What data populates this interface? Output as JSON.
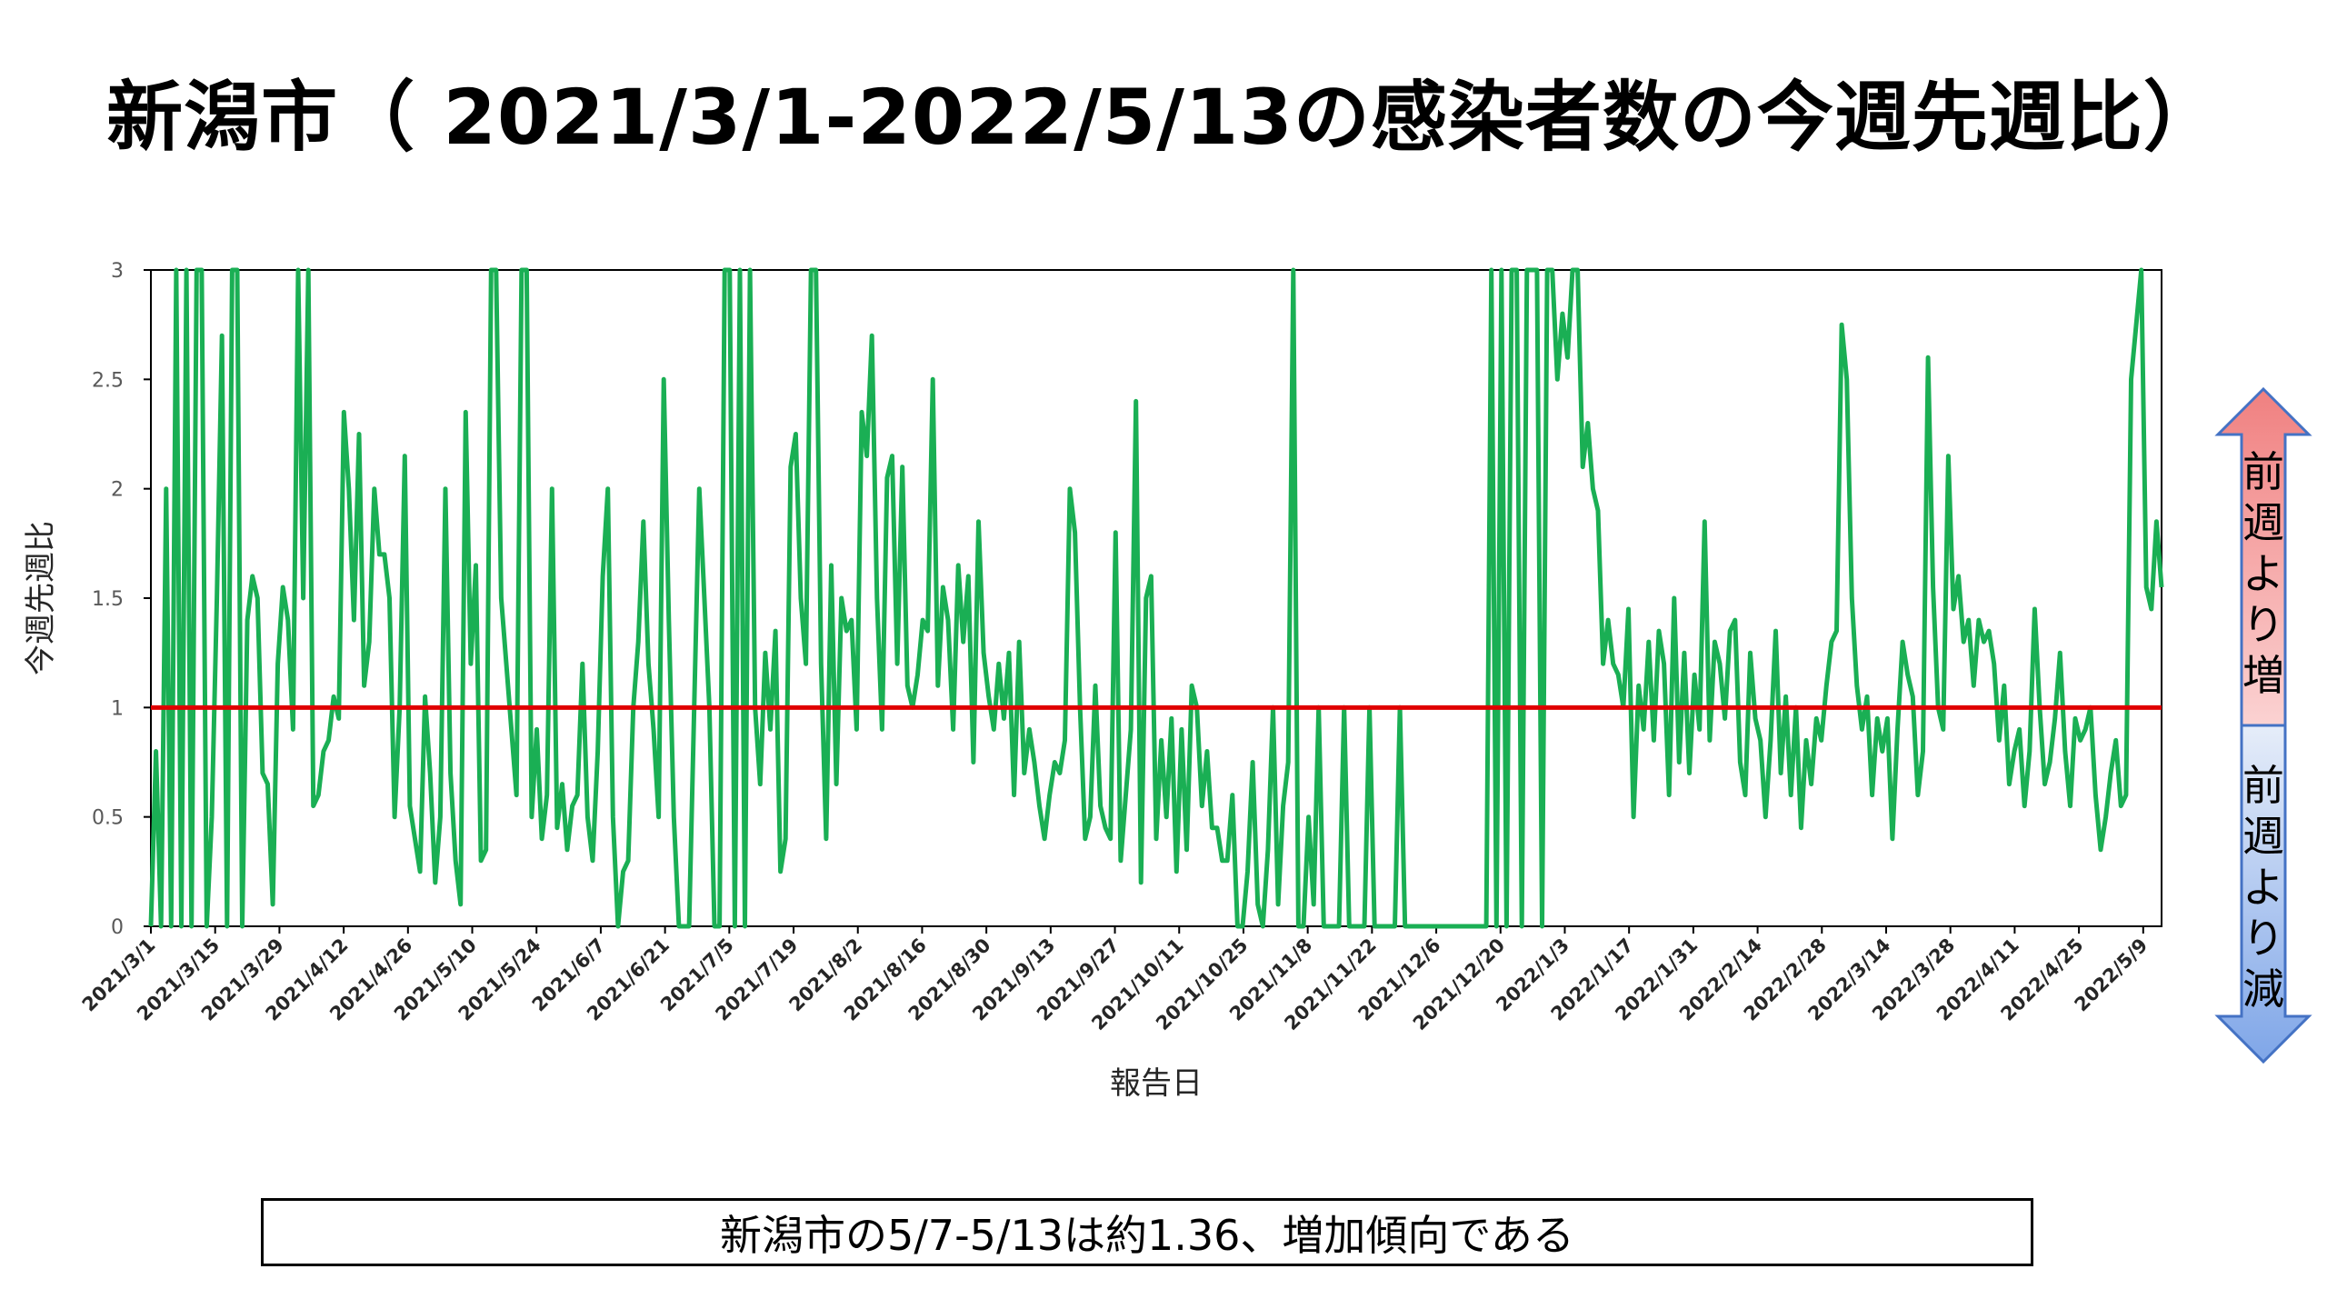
{
  "page": {
    "title": "新潟市（ 2021/3/1-2022/5/13の感染者数の今週先週比）",
    "footer_note": "新潟市の5/7-5/13は約1.36、増加傾向である"
  },
  "indicator": {
    "up_label": "前週より増",
    "down_label": "前週より減",
    "up_color": "#f08080",
    "down_color": "#7fa6e8"
  },
  "chart_data": {
    "type": "line",
    "xlabel": "報告日",
    "ylabel": "今週先週比",
    "ylim": [
      0,
      3
    ],
    "yticks": [
      0,
      0.5,
      1,
      1.5,
      2,
      2.5,
      3
    ],
    "x_start": "2021/3/1",
    "x_end": "2022/5/13",
    "x_tick_labels": [
      "2021/3/1",
      "2021/3/15",
      "2021/3/29",
      "2021/4/12",
      "2021/4/26",
      "2021/5/10",
      "2021/5/24",
      "2021/6/7",
      "2021/6/21",
      "2021/7/5",
      "2021/7/19",
      "2021/8/2",
      "2021/8/16",
      "2021/8/30",
      "2021/9/13",
      "2021/9/27",
      "2021/10/11",
      "2021/10/25",
      "2021/11/8",
      "2021/11/22",
      "2021/12/6",
      "2021/12/20",
      "2022/1/3",
      "2022/1/17",
      "2022/1/31",
      "2022/2/14",
      "2022/2/28",
      "2022/3/14",
      "2022/3/28",
      "2022/4/11",
      "2022/4/25",
      "2022/5/9"
    ],
    "grid": false,
    "series_color": "#1aaf54",
    "reference_line": {
      "y": 1,
      "color": "#e00000"
    },
    "series": [
      {
        "values": [
          0,
          0.8,
          0,
          2,
          0,
          3,
          0,
          3,
          0,
          3,
          3,
          0,
          0.5,
          1.5,
          2.7,
          0,
          3,
          3,
          0,
          1.4,
          1.6,
          1.5,
          0.7,
          0.65,
          0.1,
          1.2,
          1.55,
          1.4,
          0.9,
          3,
          1.5,
          3,
          0.55,
          0.6,
          0.8,
          0.85,
          1.05,
          0.95,
          2.35,
          2,
          1.4,
          2.25,
          1.1,
          1.3,
          2,
          1.7,
          1.7,
          1.5,
          0.5,
          1,
          2.15,
          0.55,
          0.4,
          0.25,
          1.05,
          0.7,
          0.2,
          0.5,
          2,
          0.7,
          0.3,
          0.1,
          2.35,
          1.2,
          1.65,
          0.3,
          0.35,
          3,
          3,
          1.5,
          1.2,
          0.9,
          0.6,
          3,
          3,
          0.5,
          0.9,
          0.4,
          0.6,
          2,
          0.45,
          0.65,
          0.35,
          0.55,
          0.6,
          1.2,
          0.5,
          0.3,
          0.8,
          1.6,
          2,
          0.5,
          0,
          0.25,
          0.3,
          1,
          1.3,
          1.85,
          1.2,
          0.9,
          0.5,
          2.5,
          1.4,
          0.5,
          0,
          0,
          0,
          1,
          2,
          1.5,
          1,
          0,
          0,
          3,
          3,
          0,
          3,
          0,
          3,
          1,
          0.65,
          1.25,
          0.9,
          1.35,
          0.25,
          0.4,
          2.1,
          2.25,
          1.5,
          1.2,
          3,
          3,
          1.2,
          0.4,
          1.65,
          0.65,
          1.5,
          1.35,
          1.4,
          0.9,
          2.35,
          2.15,
          2.7,
          1.5,
          0.9,
          2.05,
          2.15,
          1.2,
          2.1,
          1.1,
          1,
          1.15,
          1.4,
          1.35,
          2.5,
          1.1,
          1.55,
          1.4,
          0.9,
          1.65,
          1.3,
          1.6,
          0.75,
          1.85,
          1.25,
          1.05,
          0.9,
          1.2,
          0.95,
          1.25,
          0.6,
          1.3,
          0.7,
          0.9,
          0.75,
          0.55,
          0.4,
          0.6,
          0.75,
          0.7,
          0.85,
          2,
          1.8,
          1,
          0.4,
          0.5,
          1.1,
          0.55,
          0.45,
          0.4,
          1.8,
          0.3,
          0.6,
          0.9,
          2.4,
          0.2,
          1.5,
          1.6,
          0.4,
          0.85,
          0.5,
          0.95,
          0.25,
          0.9,
          0.35,
          1.1,
          1,
          0.55,
          0.8,
          0.45,
          0.45,
          0.3,
          0.3,
          0.6,
          0,
          0,
          0.25,
          0.75,
          0.1,
          0,
          0.35,
          1,
          0.1,
          0.55,
          0.75,
          3,
          0,
          0,
          0.5,
          0.1,
          1,
          0,
          0,
          0,
          0,
          1,
          0,
          0,
          0,
          0,
          1,
          0,
          0,
          0,
          0,
          0,
          1,
          0,
          0,
          0,
          0,
          0,
          0,
          0,
          0,
          0,
          0,
          0,
          0,
          0,
          0,
          0,
          0,
          0,
          3,
          0,
          3,
          0,
          3,
          3,
          0,
          3,
          3,
          3,
          0,
          3,
          3,
          2.5,
          2.8,
          2.6,
          3,
          3,
          2.1,
          2.3,
          2,
          1.9,
          1.2,
          1.4,
          1.2,
          1.15,
          1,
          1.45,
          0.5,
          1.1,
          0.9,
          1.3,
          0.85,
          1.35,
          1.2,
          0.6,
          1.5,
          0.75,
          1.25,
          0.7,
          1.15,
          0.9,
          1.85,
          0.85,
          1.3,
          1.2,
          0.95,
          1.35,
          1.4,
          0.75,
          0.6,
          1.25,
          0.95,
          0.85,
          0.5,
          0.85,
          1.35,
          0.7,
          1.05,
          0.6,
          1,
          0.45,
          0.85,
          0.65,
          0.95,
          0.85,
          1.1,
          1.3,
          1.35,
          2.75,
          2.5,
          1.5,
          1.1,
          0.9,
          1.05,
          0.6,
          0.95,
          0.8,
          0.95,
          0.4,
          0.9,
          1.3,
          1.15,
          1.05,
          0.6,
          0.8,
          2.6,
          1.55,
          1,
          0.9,
          2.15,
          1.45,
          1.6,
          1.3,
          1.4,
          1.1,
          1.4,
          1.3,
          1.35,
          1.2,
          0.85,
          1.1,
          0.65,
          0.8,
          0.9,
          0.55,
          0.8,
          1.45,
          1,
          0.65,
          0.75,
          0.95,
          1.25,
          0.8,
          0.55,
          0.95,
          0.85,
          0.9,
          1,
          0.6,
          0.35,
          0.5,
          0.7,
          0.85,
          0.55,
          0.6,
          2.5,
          2.75,
          3,
          1.55,
          1.45,
          1.85,
          1.55
        ]
      }
    ]
  }
}
